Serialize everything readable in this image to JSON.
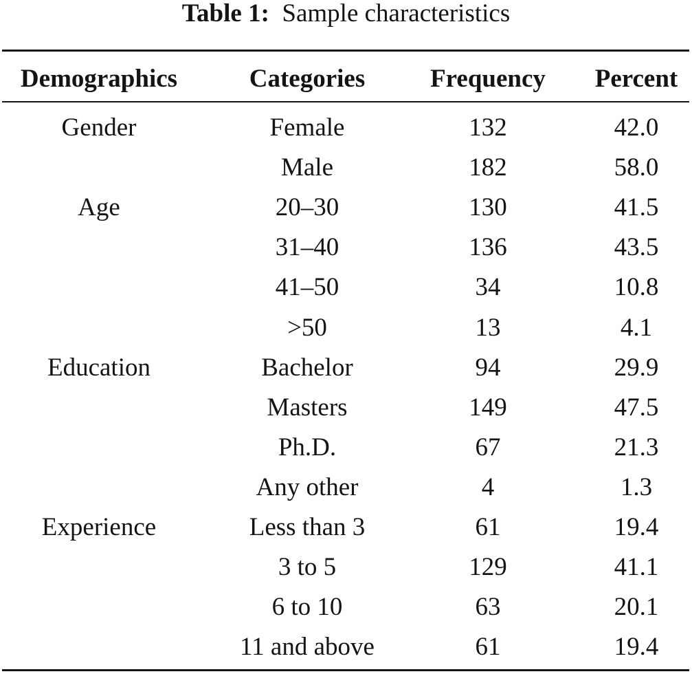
{
  "caption": {
    "label": "Table 1:",
    "text": "Sample characteristics"
  },
  "table": {
    "headers": [
      "Demographics",
      "Categories",
      "Frequency",
      "Percent"
    ],
    "rows": [
      {
        "group": "Gender",
        "category": "Female",
        "frequency": "132",
        "percent": "42.0"
      },
      {
        "group": "",
        "category": "Male",
        "frequency": "182",
        "percent": "58.0"
      },
      {
        "group": "Age",
        "category": "20–30",
        "frequency": "130",
        "percent": "41.5"
      },
      {
        "group": "",
        "category": "31–40",
        "frequency": "136",
        "percent": "43.5"
      },
      {
        "group": "",
        "category": "41–50",
        "frequency": "34",
        "percent": "10.8"
      },
      {
        "group": "",
        "category": ">50",
        "frequency": "13",
        "percent": "4.1"
      },
      {
        "group": "Education",
        "category": "Bachelor",
        "frequency": "94",
        "percent": "29.9"
      },
      {
        "group": "",
        "category": "Masters",
        "frequency": "149",
        "percent": "47.5"
      },
      {
        "group": "",
        "category": "Ph.D.",
        "frequency": "67",
        "percent": "21.3"
      },
      {
        "group": "",
        "category": "Any other",
        "frequency": "4",
        "percent": "1.3"
      },
      {
        "group": "Experience",
        "category": "Less than 3",
        "frequency": "61",
        "percent": "19.4"
      },
      {
        "group": "",
        "category": "3 to 5",
        "frequency": "129",
        "percent": "41.1"
      },
      {
        "group": "",
        "category": "6 to 10",
        "frequency": "63",
        "percent": "20.1"
      },
      {
        "group": "",
        "category": "11 and above",
        "frequency": "61",
        "percent": "19.4"
      }
    ]
  }
}
